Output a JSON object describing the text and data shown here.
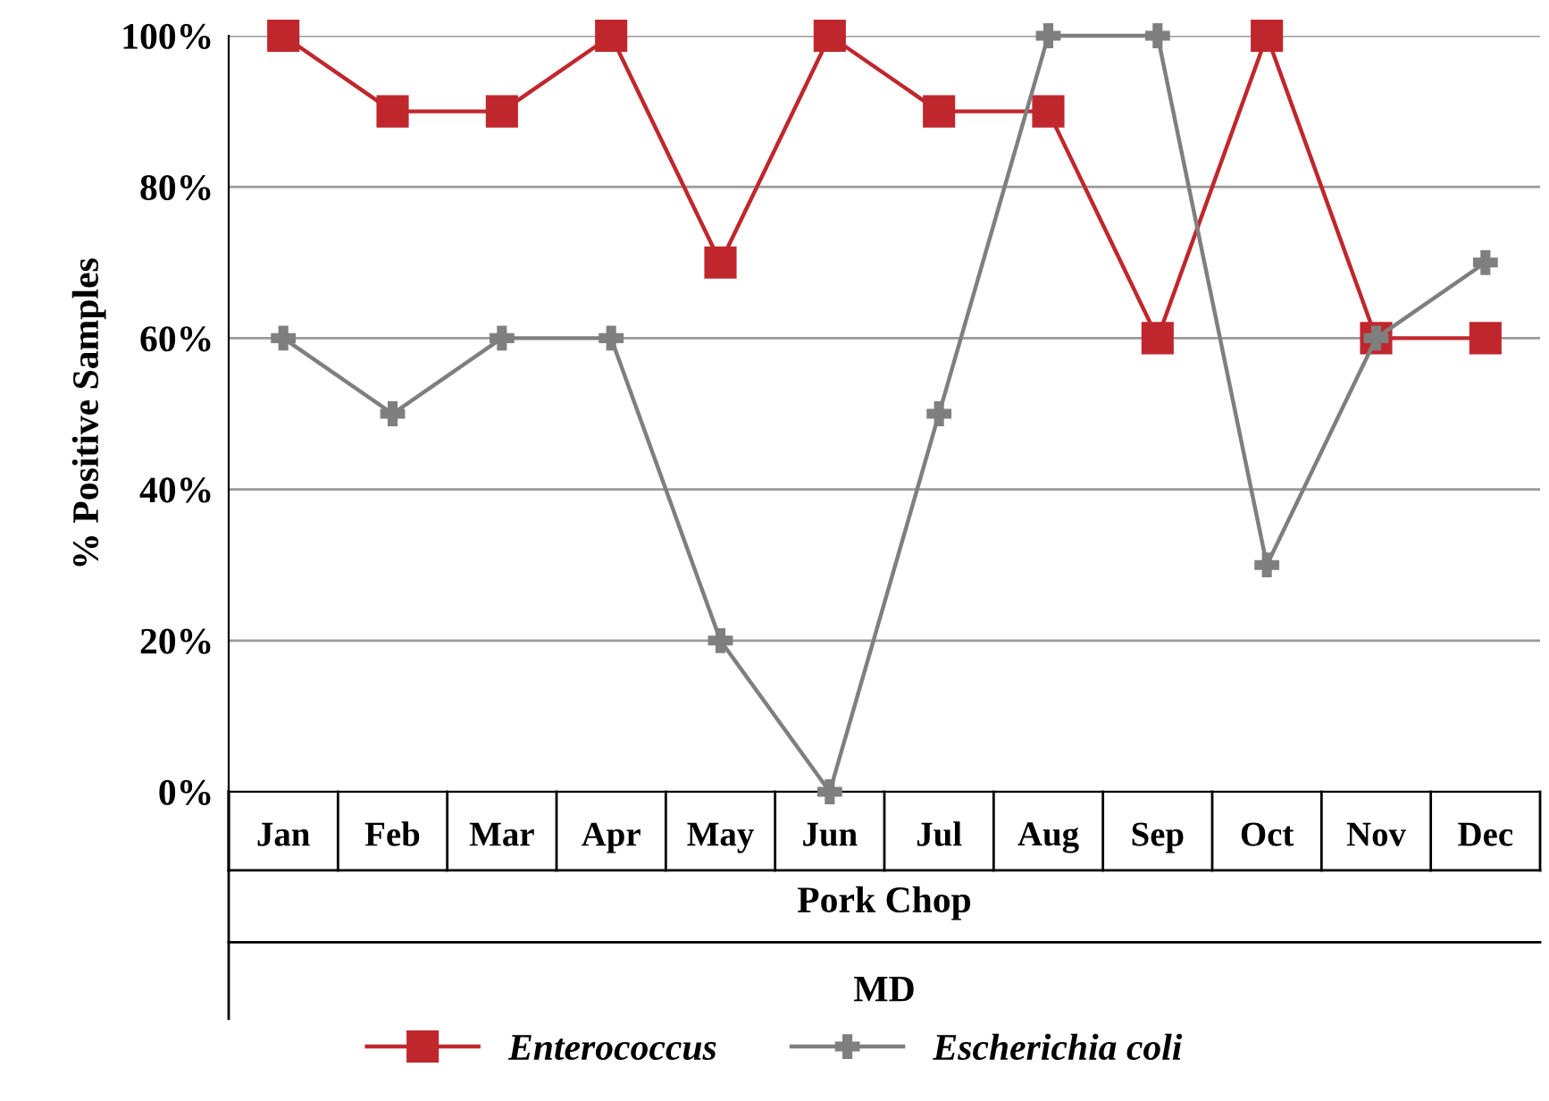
{
  "chart_data": {
    "type": "line",
    "ylabel": "% Positive Samples",
    "xlabel": "Pork Chop",
    "annotations": [
      "MD"
    ],
    "categories": [
      "Jan",
      "Feb",
      "Mar",
      "Apr",
      "May",
      "Jun",
      "Jul",
      "Aug",
      "Sep",
      "Oct",
      "Nov",
      "Dec"
    ],
    "series": [
      {
        "name": "Enterococcus",
        "color": "#c0272d",
        "marker": "square",
        "values": [
          100,
          90,
          90,
          100,
          70,
          100,
          90,
          90,
          60,
          100,
          60,
          60
        ]
      },
      {
        "name": "Escherichia coli",
        "color": "#7f7f7f",
        "marker": "cross",
        "values": [
          60,
          50,
          60,
          60,
          20,
          0,
          50,
          100,
          100,
          30,
          60,
          70
        ]
      }
    ],
    "ylim": [
      0,
      100
    ],
    "yticks": [
      {
        "value": 0,
        "label": "0%"
      },
      {
        "value": 20,
        "label": "20%"
      },
      {
        "value": 40,
        "label": "40%"
      },
      {
        "value": 60,
        "label": "60%"
      },
      {
        "value": 80,
        "label": "80%"
      },
      {
        "value": 100,
        "label": "100%"
      }
    ],
    "grid": "y",
    "legend": "bottom",
    "line_style": "solid"
  }
}
